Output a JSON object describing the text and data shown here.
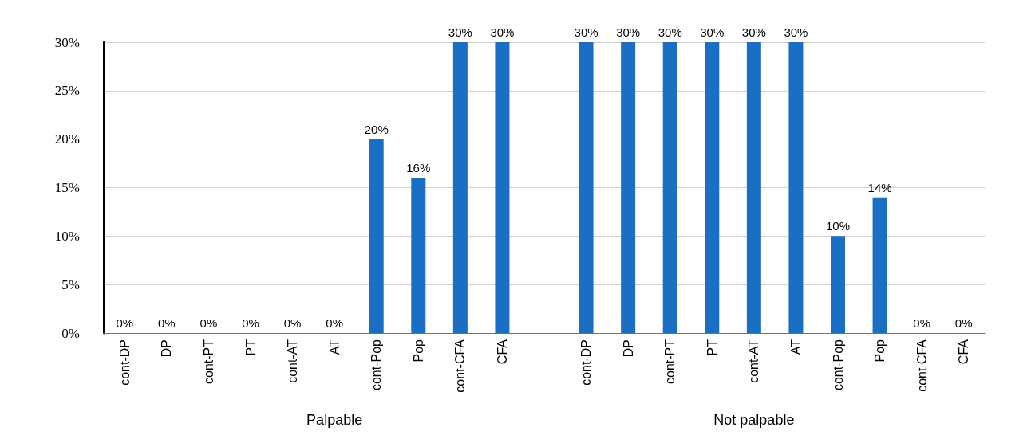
{
  "chart_data": {
    "type": "bar",
    "categories": [
      "cont-DP",
      "DP",
      "cont-PT",
      "PT",
      "cont-AT",
      "AT",
      "cont-Pop",
      "Pop",
      "cont-CFA",
      "CFA",
      null,
      "cont-DP",
      "DP",
      "cont-PT",
      "PT",
      "cont-AT",
      "AT",
      "cont-Pop",
      "Pop",
      "cont CFA",
      "CFA"
    ],
    "values": [
      0,
      0,
      0,
      0,
      0,
      0,
      20,
      16,
      30,
      30,
      null,
      30,
      30,
      30,
      30,
      30,
      30,
      10,
      14,
      0,
      0
    ],
    "value_labels": [
      "0%",
      "0%",
      "0%",
      "0%",
      "0%",
      "0%",
      "20%",
      "16%",
      "30%",
      "30%",
      null,
      "30%",
      "30%",
      "30%",
      "30%",
      "30%",
      "30%",
      "10%",
      "14%",
      "0%",
      "0%"
    ],
    "color": "#1a6fc2",
    "ylim": [
      0,
      30
    ],
    "yticks": [
      {
        "value": 0,
        "label": "0%"
      },
      {
        "value": 5,
        "label": "5%"
      },
      {
        "value": 10,
        "label": "10%"
      },
      {
        "value": 15,
        "label": "15%"
      },
      {
        "value": 20,
        "label": "20%"
      },
      {
        "value": 25,
        "label": "25%"
      },
      {
        "value": 30,
        "label": "30%"
      }
    ],
    "annotations": [
      "Palpable",
      "Not palpable"
    ],
    "grid": "y"
  }
}
